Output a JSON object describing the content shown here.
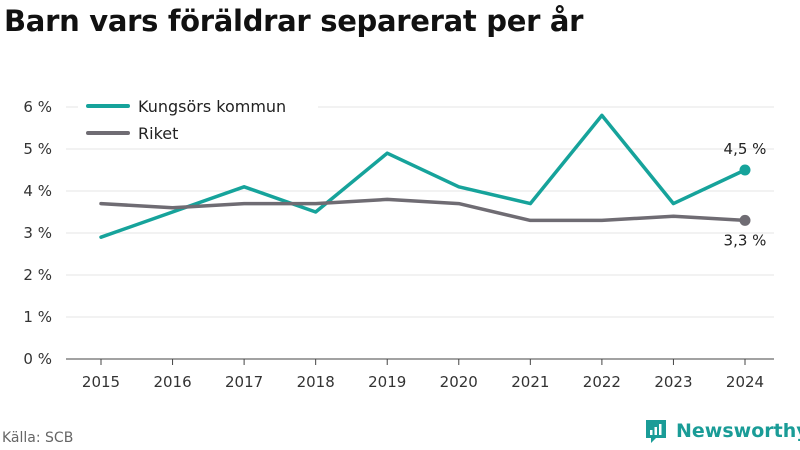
{
  "header": {
    "title": "Barn vars föräldrar separerat per år"
  },
  "footer": {
    "source": "Källa: SCB",
    "brand": "Newsworthy"
  },
  "chart_data": {
    "type": "line",
    "title": "Barn vars föräldrar separerat per år",
    "x": [
      "2015",
      "2016",
      "2017",
      "2018",
      "2019",
      "2020",
      "2021",
      "2022",
      "2023",
      "2024"
    ],
    "series": [
      {
        "name": "Kungsörs kommun",
        "color": "#16a39b",
        "values": [
          2.9,
          3.5,
          4.1,
          3.5,
          4.9,
          4.1,
          3.7,
          5.8,
          3.7,
          4.5
        ],
        "end_label": "4,5 %"
      },
      {
        "name": "Riket",
        "color": "#6f6c73",
        "values": [
          3.7,
          3.6,
          3.7,
          3.7,
          3.8,
          3.7,
          3.3,
          3.3,
          3.4,
          3.3
        ],
        "end_label": "3,3 %"
      }
    ],
    "yticks": [
      0,
      1,
      2,
      3,
      4,
      5,
      6
    ],
    "ytick_labels": [
      "0 %",
      "1 %",
      "2 %",
      "3 %",
      "4 %",
      "5 %",
      "6 %"
    ],
    "ylim": [
      0,
      6
    ],
    "grid": true,
    "legend_position": "top-left"
  }
}
